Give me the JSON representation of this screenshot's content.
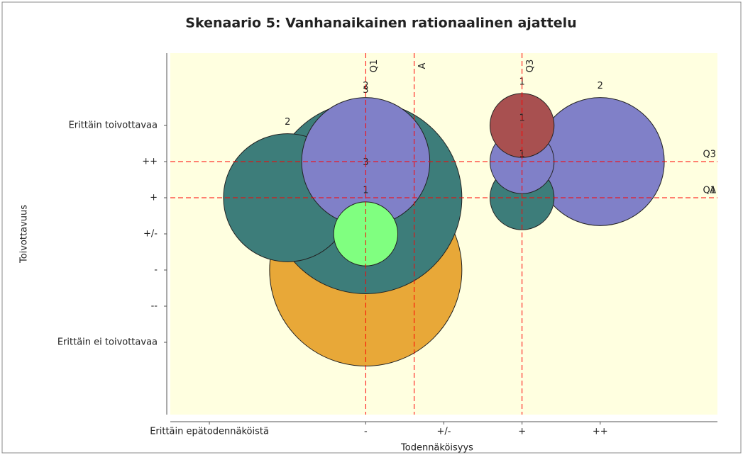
{
  "chart_data": {
    "type": "bubble",
    "title": "Skenaario 5: Vanhanaikainen rationaalinen ajattelu",
    "xlabel": "Todennäköisyys",
    "ylabel": "Toivottavuus",
    "xlim": [
      0.5,
      7.5
    ],
    "ylim": [
      -1,
      9
    ],
    "xticks": [
      {
        "value": 1,
        "label": "Erittäin epätodennäköistä"
      },
      {
        "value": 3,
        "label": "-"
      },
      {
        "value": 4,
        "label": "+/-"
      },
      {
        "value": 5,
        "label": "+"
      },
      {
        "value": 6,
        "label": "++"
      }
    ],
    "yticks": [
      {
        "value": 1,
        "label": "Erittäin ei toivottavaa"
      },
      {
        "value": 2,
        "label": "--"
      },
      {
        "value": 3,
        "label": "-"
      },
      {
        "value": 4,
        "label": "+/-"
      },
      {
        "value": 5,
        "label": "+"
      },
      {
        "value": 6,
        "label": "++"
      },
      {
        "value": 7,
        "label": "Erittäin toivottavaa"
      }
    ],
    "points": [
      {
        "x": 3,
        "y": 3,
        "size": 3,
        "color": "#e8a838"
      },
      {
        "x": 3,
        "y": 5,
        "size": 3,
        "color": "#3d7d7a"
      },
      {
        "x": 2,
        "y": 5,
        "size": 2,
        "color": "#3d7d7a"
      },
      {
        "x": 3,
        "y": 6,
        "size": 2,
        "color": "#8080c8"
      },
      {
        "x": 3,
        "y": 4,
        "size": 1,
        "color": "#80ff80"
      },
      {
        "x": 6,
        "y": 6,
        "size": 2,
        "color": "#8080c8"
      },
      {
        "x": 5,
        "y": 5,
        "size": 1,
        "color": "#3d7d7a"
      },
      {
        "x": 5,
        "y": 6,
        "size": 1,
        "color": "#8080c8"
      },
      {
        "x": 5,
        "y": 7,
        "size": 1,
        "color": "#a85050"
      }
    ],
    "reference_lines": [
      {
        "axis": "x",
        "value": 3,
        "label": "Q1"
      },
      {
        "axis": "x",
        "value": 3.62,
        "label": "A"
      },
      {
        "axis": "x",
        "value": 5,
        "label": "Q3"
      },
      {
        "axis": "y",
        "value": 6,
        "label": "Q3"
      },
      {
        "axis": "y",
        "value": 5,
        "label": "Q1"
      },
      {
        "axis": "y",
        "value": 5,
        "label": "A"
      }
    ],
    "reference_color": "#ff0000",
    "background": "#ffffe0"
  }
}
